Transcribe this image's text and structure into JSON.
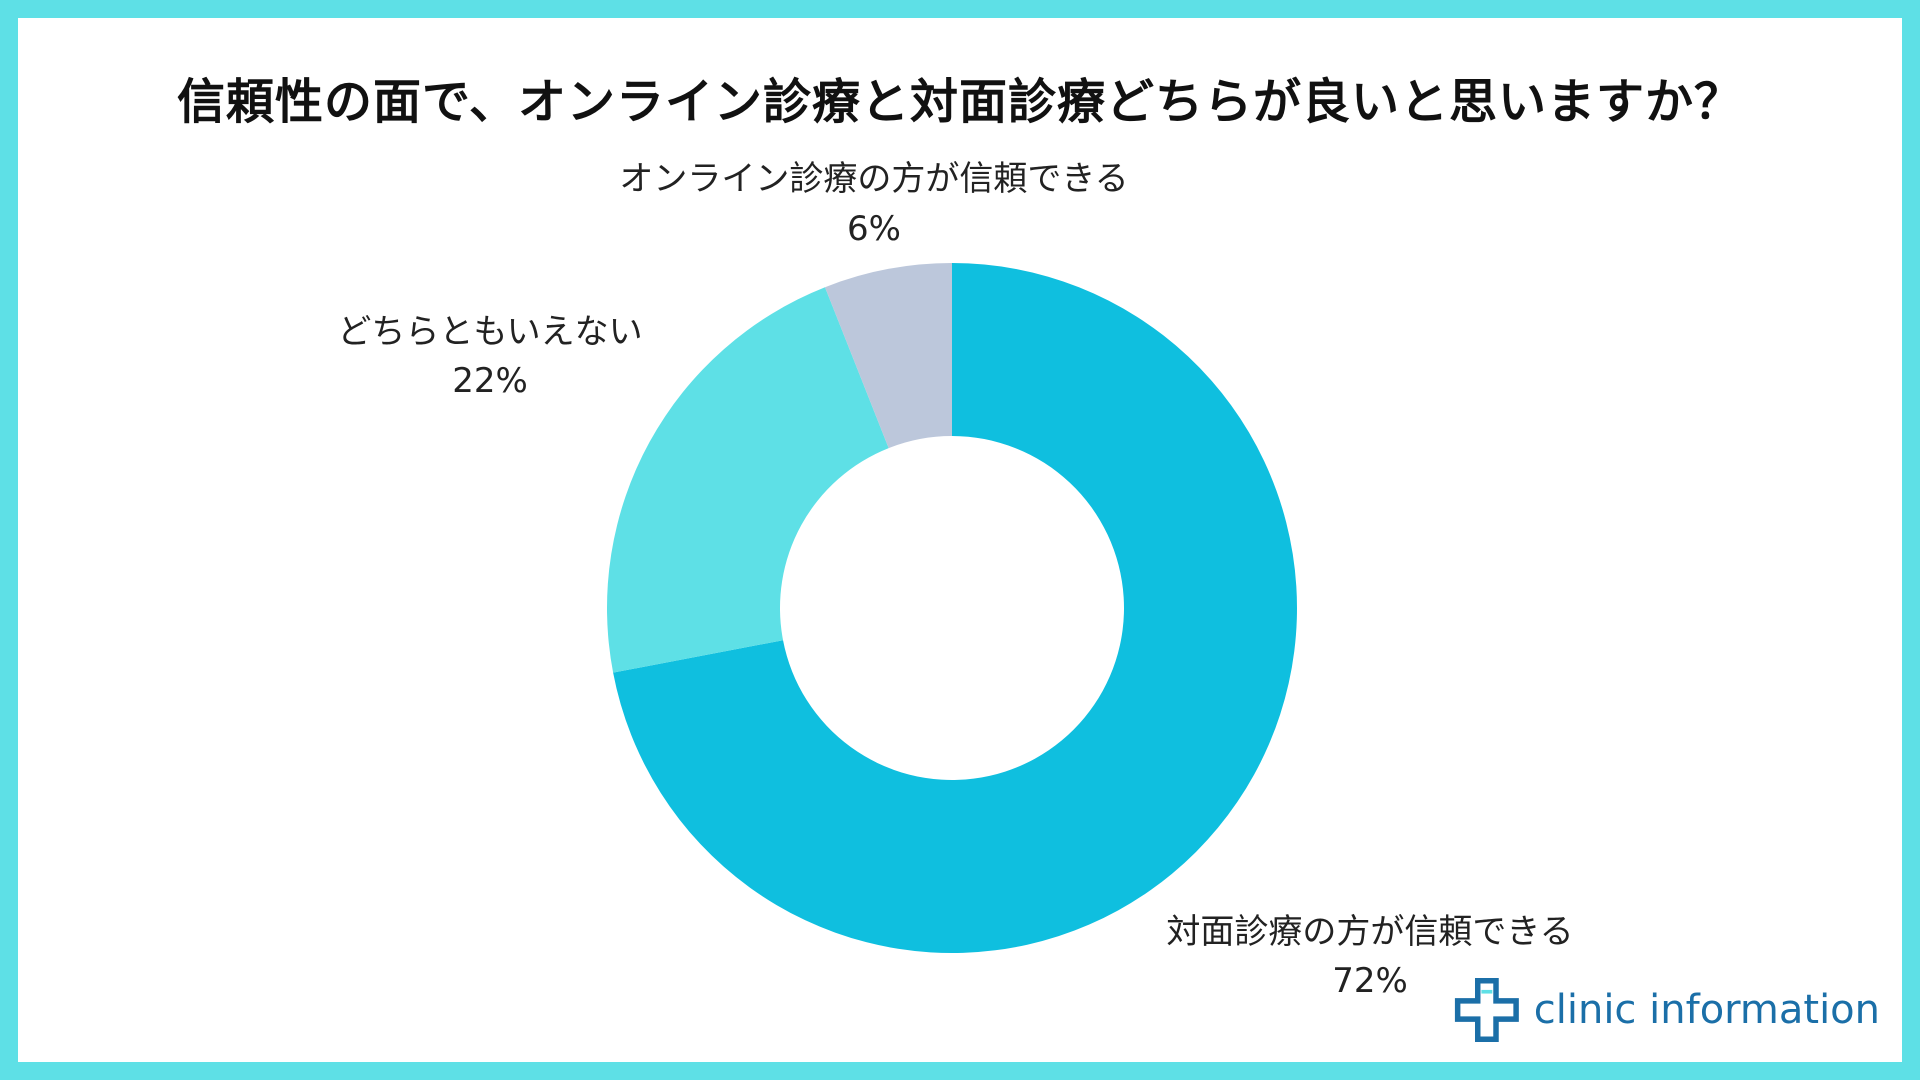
{
  "title": "信頼性の面で、オンライン診療と対面診療どちらが良いと思いますか？",
  "logo": {
    "text": "clinic information",
    "icon": "medical-cross-icon",
    "color": "#1b6fa8"
  },
  "colors": {
    "border": "#5ee0e6",
    "background": "#ffffff"
  },
  "chart_data": {
    "type": "pie",
    "title": "信頼性の面で、オンライン診療と対面診療どちらが良いと思いますか？",
    "donut": true,
    "start_angle_deg": 0,
    "direction": "clockwise",
    "slices": [
      {
        "label": "対面診療の方が信頼できる",
        "value": 72,
        "value_label": "72%",
        "color": "#0fbfdf"
      },
      {
        "label": "どちらともいえない",
        "value": 22,
        "value_label": "22%",
        "color": "#5ee0e6"
      },
      {
        "label": "オンライン診療の方が信頼できる",
        "value": 6,
        "value_label": "6%",
        "color": "#bcc7db"
      }
    ]
  }
}
